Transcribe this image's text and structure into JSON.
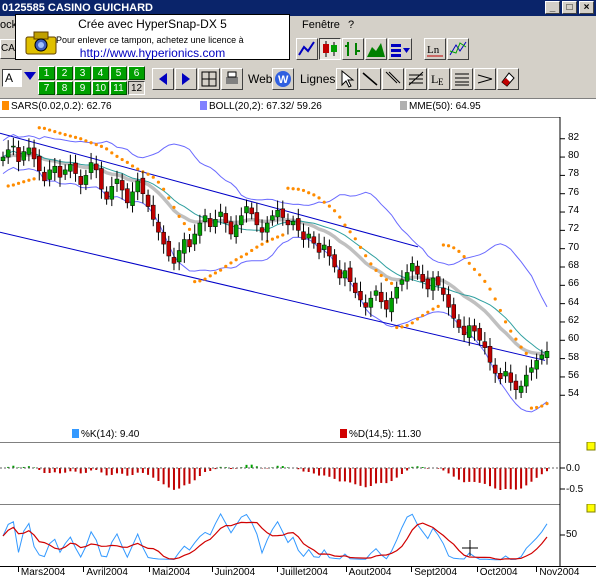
{
  "window": {
    "title": "0125585  CASINO GUICHARD"
  },
  "menu": {
    "left_fragment": "ockT",
    "fenetre": "Fenêtre",
    "help": "?"
  },
  "stamp": {
    "line1": "Crée avec HyperSnap-DX 5",
    "line2": "Pour enlever ce tampon, achetez une licence à",
    "line3": "http://www.hyperionics.com"
  },
  "toolbar": {
    "ticker_fragment": "CA",
    "combo_value": "A",
    "number_buttons": [
      "1",
      "2",
      "3",
      "4",
      "5",
      "6",
      "7",
      "8",
      "9",
      "10",
      "11",
      "12"
    ],
    "web_label": "Web",
    "lines_label": "Lignes"
  },
  "legend": {
    "sars": "SARS(0.02,0.2): 62.76",
    "boll": "BOLL(20,2): 67.32/ 59.26",
    "mme": "MME(50): 64.95",
    "k": "%K(14):  9.40",
    "d": "%D(14,5): 11.30"
  },
  "colors": {
    "sars": "#ff8c00",
    "boll": "#6060e0",
    "mme": "#a0a0a0",
    "up": "#00a000",
    "down": "#c00000",
    "k": "#3399ff",
    "d": "#d00000"
  },
  "chart_data": [
    {
      "type": "candlestick",
      "ylim": [
        52.5,
        83.5
      ],
      "y_ticks": [
        "82",
        "80",
        "78",
        "76",
        "74",
        "72",
        "70",
        "68",
        "66",
        "64",
        "62",
        "60",
        "58",
        "56",
        "54"
      ],
      "x_ticks": [
        "Mars2004",
        "Avril2004",
        "Mai2004",
        "Juin2004",
        "Juillet2004",
        "Aout2004",
        "Sept2004",
        "Oct2004",
        "Nov2004"
      ],
      "close": [
        80.0,
        80.8,
        81.2,
        79.5,
        80.6,
        81.0,
        79.8,
        78.5,
        77.4,
        78.6,
        79.0,
        77.8,
        78.6,
        79.2,
        78.2,
        77.0,
        78.0,
        79.4,
        78.6,
        76.5,
        75.4,
        76.8,
        77.6,
        76.4,
        75.0,
        76.2,
        77.4,
        76.0,
        74.6,
        73.2,
        71.8,
        70.5,
        69.2,
        68.4,
        69.8,
        71.0,
        70.2,
        71.6,
        72.8,
        73.6,
        72.4,
        73.2,
        74.0,
        72.8,
        71.6,
        72.6,
        73.6,
        74.6,
        73.8,
        72.6,
        71.8,
        72.8,
        73.6,
        74.2,
        73.4,
        72.6,
        73.0,
        72.0,
        71.0,
        71.6,
        70.6,
        69.6,
        70.4,
        69.2,
        68.0,
        66.8,
        67.6,
        66.4,
        65.2,
        64.4,
        63.6,
        64.6,
        65.4,
        64.2,
        63.4,
        64.6,
        65.8,
        66.6,
        67.4,
        68.4,
        67.2,
        66.4,
        65.6,
        66.8,
        66.0,
        65.0,
        63.6,
        62.4,
        61.4,
        60.6,
        61.6,
        61.0,
        60.0,
        59.2,
        57.6,
        56.4,
        55.8,
        56.6,
        55.4,
        54.6,
        55.0,
        56.2,
        57.0,
        57.8,
        58.4,
        58.8
      ]
    }
  ]
}
